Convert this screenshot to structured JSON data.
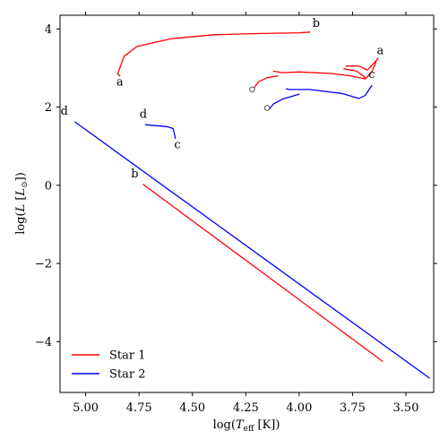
{
  "chart_data": {
    "type": "line",
    "title": "",
    "xlabel": "log(T_eff [K])",
    "ylabel": "log(L [L_⊙])",
    "xlim": [
      5.12,
      3.37
    ],
    "ylim": [
      -5.3,
      4.35
    ],
    "x_inverted": true,
    "xticks": [
      5.0,
      4.75,
      4.5,
      4.25,
      4.0,
      3.75,
      3.5
    ],
    "xtick_labels": [
      "5.00",
      "4.75",
      "4.50",
      "4.25",
      "4.00",
      "3.75",
      "3.50"
    ],
    "yticks": [
      4,
      2,
      0,
      -2,
      -4
    ],
    "ytick_labels": [
      "4",
      "2",
      "0",
      "−2",
      "−4"
    ],
    "grid": false,
    "legend_position": "bottom-left",
    "series": [
      {
        "name": "Star 1",
        "color": "#ff0000",
        "segments": [
          [
            [
              4.73,
              0.02
            ],
            [
              3.61,
              -4.5
            ]
          ],
          [
            [
              4.84,
              2.8
            ],
            [
              4.85,
              2.85
            ],
            [
              4.82,
              3.3
            ],
            [
              4.76,
              3.55
            ],
            [
              4.6,
              3.75
            ],
            [
              4.4,
              3.85
            ],
            [
              4.2,
              3.88
            ],
            [
              4.0,
              3.9
            ],
            [
              3.95,
              3.92
            ]
          ],
          [
            [
              4.21,
              2.5
            ],
            [
              4.19,
              2.65
            ],
            [
              4.15,
              2.75
            ],
            [
              4.1,
              2.8
            ]
          ],
          [
            [
              4.12,
              2.92
            ],
            [
              4.08,
              2.88
            ],
            [
              4.0,
              2.9
            ],
            [
              3.85,
              2.86
            ],
            [
              3.76,
              2.8
            ],
            [
              3.69,
              2.72
            ],
            [
              3.66,
              2.9
            ],
            [
              3.64,
              3.15
            ]
          ],
          [
            [
              3.78,
              3.05
            ],
            [
              3.72,
              3.05
            ],
            [
              3.68,
              2.95
            ],
            [
              3.64,
              3.18
            ],
            [
              3.63,
              3.25
            ]
          ],
          [
            [
              3.79,
              2.98
            ],
            [
              3.73,
              2.92
            ],
            [
              3.69,
              2.75
            ]
          ]
        ]
      },
      {
        "name": "Star 2",
        "color": "#0000ff",
        "segments": [
          [
            [
              5.05,
              1.62
            ],
            [
              3.39,
              -4.93
            ]
          ],
          [
            [
              4.72,
              1.55
            ],
            [
              4.62,
              1.5
            ],
            [
              4.59,
              1.45
            ],
            [
              4.58,
              1.2
            ]
          ],
          [
            [
              4.14,
              1.95
            ],
            [
              4.12,
              2.08
            ],
            [
              4.08,
              2.2
            ],
            [
              4.0,
              2.33
            ]
          ],
          [
            [
              4.06,
              2.47
            ],
            [
              4.05,
              2.45
            ],
            [
              3.95,
              2.45
            ],
            [
              3.8,
              2.35
            ],
            [
              3.72,
              2.22
            ],
            [
              3.69,
              2.3
            ],
            [
              3.66,
              2.55
            ]
          ]
        ]
      }
    ],
    "markers": [
      {
        "series": "Star 1",
        "x": 4.22,
        "y": 2.45,
        "shape": "open-circle"
      },
      {
        "series": "Star 2",
        "x": 4.15,
        "y": 1.98,
        "shape": "open-circle"
      }
    ],
    "annotations": [
      {
        "text": "a",
        "x": 4.84,
        "y": 2.55
      },
      {
        "text": "b",
        "x": 3.92,
        "y": 4.05
      },
      {
        "text": "a",
        "x": 3.62,
        "y": 3.35
      },
      {
        "text": "c",
        "x": 3.66,
        "y": 2.75
      },
      {
        "text": "b",
        "x": 4.77,
        "y": 0.2
      },
      {
        "text": "d",
        "x": 5.1,
        "y": 1.8
      },
      {
        "text": "d",
        "x": 4.73,
        "y": 1.72
      },
      {
        "text": "c",
        "x": 4.57,
        "y": 0.95
      }
    ],
    "legend": [
      {
        "label": "Star 1",
        "color": "#ff0000"
      },
      {
        "label": "Star 2",
        "color": "#0000ff"
      }
    ]
  }
}
